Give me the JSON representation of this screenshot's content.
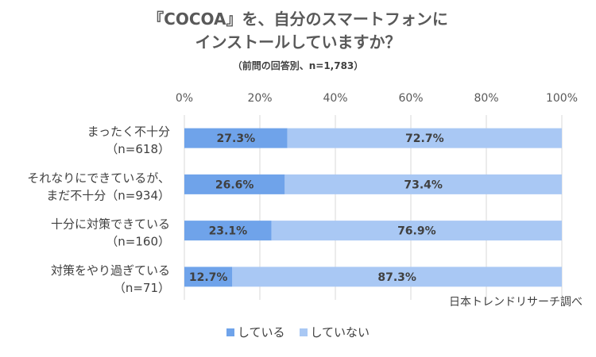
{
  "chart_data": {
    "type": "bar",
    "orientation": "horizontal-stacked-100",
    "title_line1": "『COCOA』を、自分のスマートフォンに",
    "title_line2": "インストールしていますか？",
    "subtitle": "（前問の回答別、n=1,783）",
    "source": "日本トレンドリサーチ調べ",
    "xlim": [
      0,
      100
    ],
    "x_ticks": [
      "0%",
      "20%",
      "40%",
      "60%",
      "80%",
      "100%"
    ],
    "categories": [
      [
        "まったく不十分",
        "（n=618）"
      ],
      [
        "それなりにできているが、",
        "まだ不十分（n=934）"
      ],
      [
        "十分に対策できている",
        "（n=160）"
      ],
      [
        "対策をやり過ぎている",
        "（n=71）"
      ]
    ],
    "series": [
      {
        "name": "している",
        "color": "#6fa3ea",
        "values": [
          27.3,
          26.6,
          23.1,
          12.7
        ]
      },
      {
        "name": "していない",
        "color": "#a9c8f4",
        "values": [
          72.7,
          73.4,
          76.9,
          87.3
        ]
      }
    ],
    "grid": true,
    "legend": "bottom"
  }
}
